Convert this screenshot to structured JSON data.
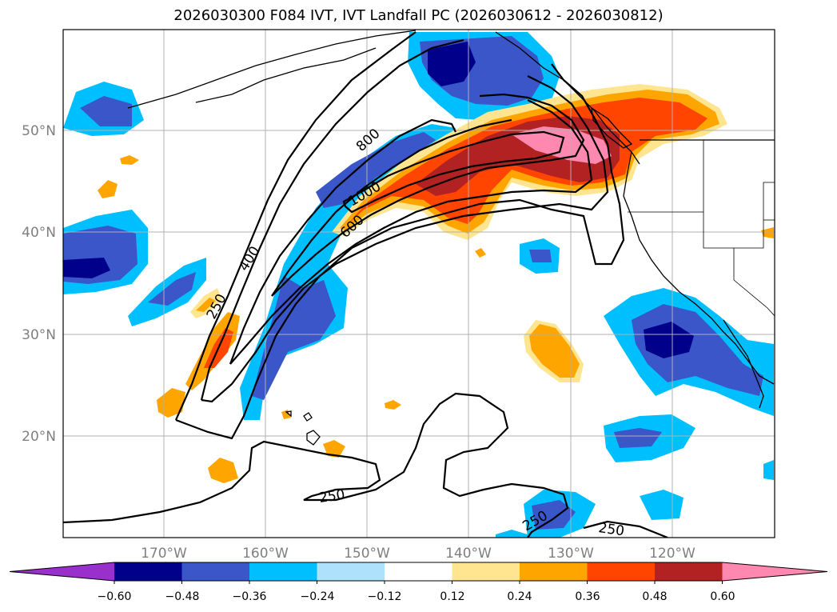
{
  "title": "2026030300 F084 IVT, IVT Landfall PC (2026030612 - 2026030812)",
  "axes": {
    "lon_ticks": [
      "170°W",
      "160°W",
      "150°W",
      "140°W",
      "130°W",
      "120°W"
    ],
    "lat_ticks": [
      "50°N",
      "40°N",
      "30°N",
      "20°N"
    ]
  },
  "contour_labels": [
    "250",
    "400",
    "600",
    "800",
    "1000",
    "250",
    "250",
    "250"
  ],
  "colorbar": {
    "tick_labels": [
      "−0.60",
      "−0.48",
      "−0.36",
      "−0.24",
      "−0.12",
      "0.12",
      "0.24",
      "0.36",
      "0.48",
      "0.60"
    ],
    "colors": [
      "#9a30cc",
      "#00008b",
      "#3a56c8",
      "#00bfff",
      "#aee1fb",
      "#ffffff",
      "#ffe58f",
      "#ffa500",
      "#ff4500",
      "#b22222",
      "#ff88b0"
    ]
  },
  "colors": {
    "land_outline": "#000000",
    "grid": "#b0b0b0",
    "ivt_contour": "#000000"
  }
}
